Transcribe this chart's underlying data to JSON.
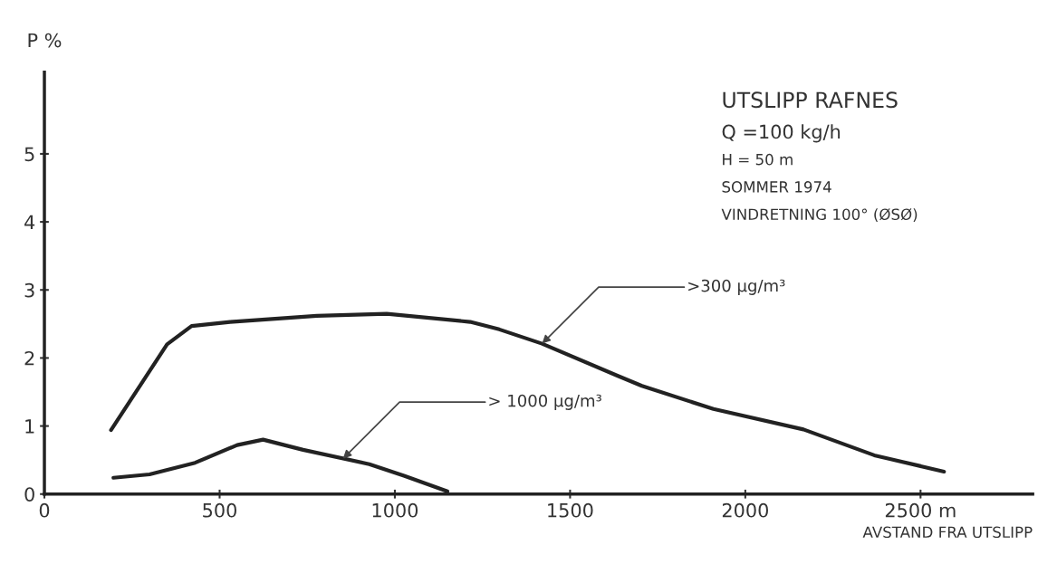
{
  "chart_data": {
    "type": "line",
    "title": "UTSLIPP RAFNES",
    "xlabel": "AVSTAND FRA UTSLIPP",
    "ylabel": "P %",
    "xlim": [
      0,
      2820
    ],
    "ylim": [
      0,
      6.2
    ],
    "xticks": [
      0,
      500,
      1000,
      1500,
      2000,
      {
        "value": 2500,
        "label": "2500 m"
      }
    ],
    "yticks": [
      0,
      1,
      2,
      3,
      4,
      5
    ],
    "grid": false,
    "legend": false,
    "marker": "none",
    "line_style": "solid",
    "series": [
      {
        "color": "#222222",
        "x": [
          190,
          350,
          420,
          530,
          777,
          977,
          1215,
          1298,
          1420,
          1635,
          1705,
          1909,
          2166,
          2368,
          2567
        ],
        "values": [
          0.94,
          2.2,
          2.47,
          2.53,
          2.62,
          2.65,
          2.53,
          2.42,
          2.21,
          1.74,
          1.59,
          1.25,
          0.95,
          0.57,
          0.33
        ]
      },
      {
        "color": "#222222",
        "x": [
          197,
          300,
          430,
          550,
          624,
          738,
          927,
          1026,
          1150
        ],
        "values": [
          0.24,
          0.29,
          0.46,
          0.72,
          0.8,
          0.65,
          0.44,
          0.27,
          0.04
        ]
      }
    ],
    "annotations": [
      "Q =100 kg/h",
      "H = 50 m",
      "SOMMER 1974",
      "VINDRETNING 100° (ØSØ)",
      {
        "text": ">300 μg/m³",
        "x": 1420,
        "y": 2.21
      },
      {
        "text": "> 1000 μg/m³",
        "x": 852,
        "y": 0.52
      }
    ]
  }
}
